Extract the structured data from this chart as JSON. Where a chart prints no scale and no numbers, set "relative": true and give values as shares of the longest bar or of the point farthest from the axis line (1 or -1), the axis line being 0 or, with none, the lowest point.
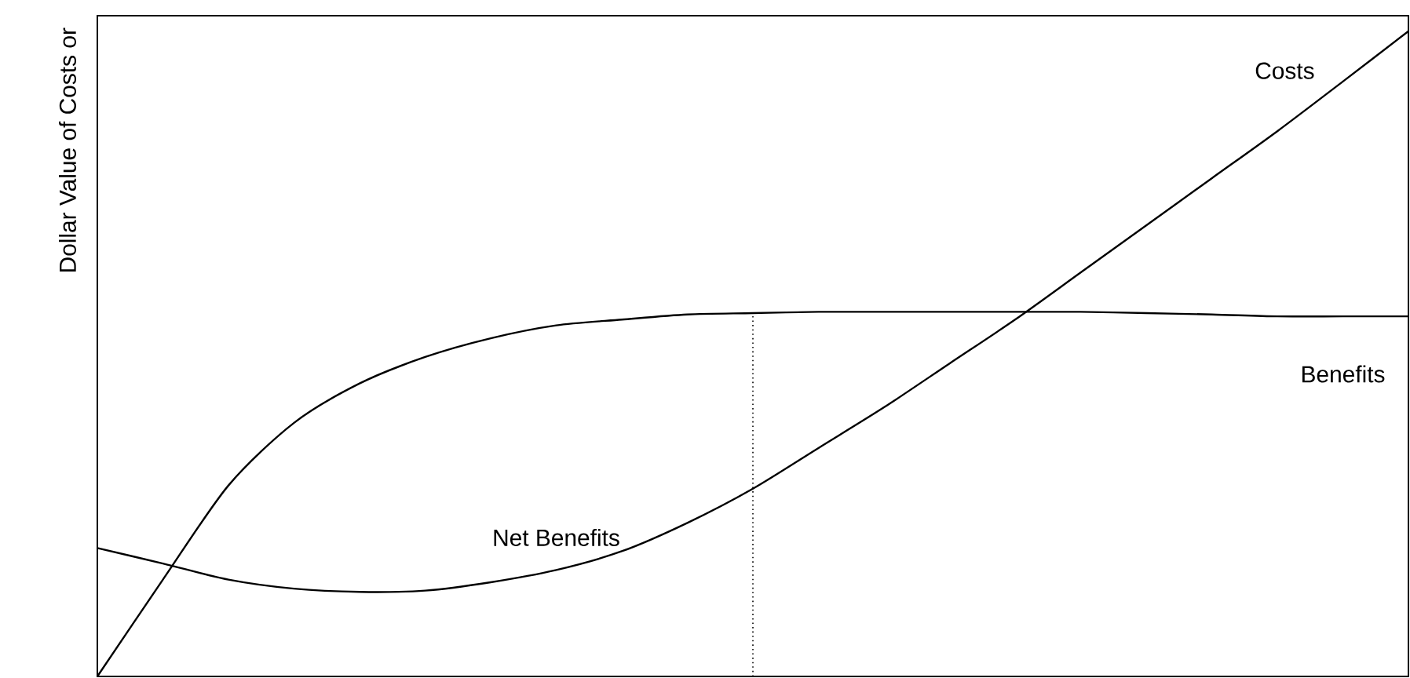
{
  "chart_data": {
    "type": "line",
    "relative": true,
    "ylabel": "Dollar Value of Costs or",
    "annotations": [
      "Net Benefits"
    ],
    "categories": [
      null,
      null,
      null,
      null,
      null,
      null,
      null,
      null,
      null,
      null,
      null,
      null,
      null,
      null,
      null,
      null,
      null,
      null,
      null,
      null,
      null
    ],
    "series": [
      {
        "name": "Costs",
        "color": "#000000",
        "values": [
          0.199,
          0.175,
          0.15,
          0.136,
          0.131,
          0.133,
          0.146,
          0.165,
          0.194,
          0.238,
          0.291,
          0.354,
          0.417,
          0.485,
          0.553,
          0.626,
          0.699,
          0.772,
          0.845,
          0.922,
          1.0
        ]
      },
      {
        "name": "Benefits",
        "color": "#000000",
        "values": [
          0.0,
          0.15,
          0.296,
          0.393,
          0.454,
          0.495,
          0.524,
          0.544,
          0.553,
          0.561,
          0.563,
          0.565,
          0.565,
          0.565,
          0.565,
          0.565,
          0.563,
          0.561,
          0.558,
          0.558,
          0.558
        ]
      }
    ],
    "marker": "none",
    "line_style": "solid"
  }
}
